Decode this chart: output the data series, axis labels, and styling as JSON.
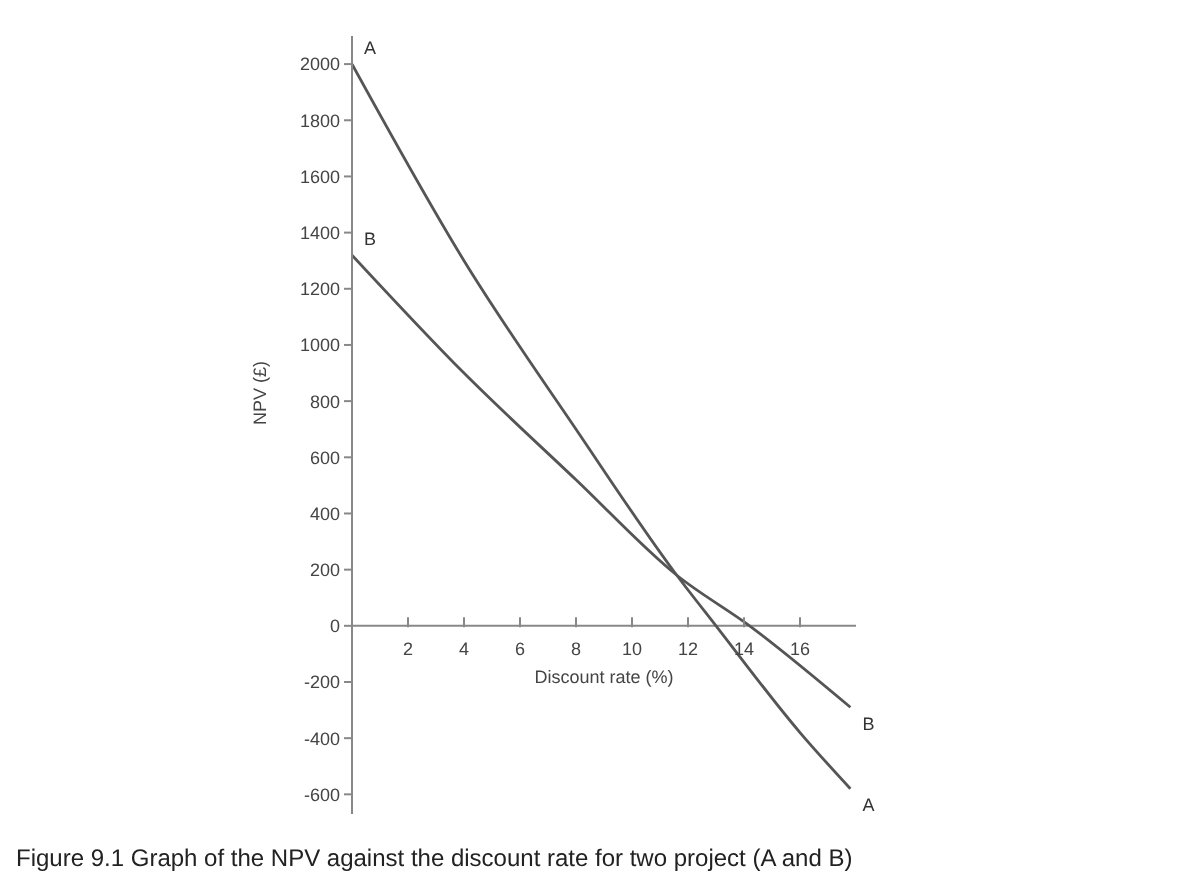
{
  "chart_data": {
    "type": "line",
    "xlabel": "Discount rate (%)",
    "ylabel": "NPV (£)",
    "xlim": [
      0,
      18
    ],
    "xticks": [
      2,
      4,
      6,
      8,
      10,
      12,
      14,
      16
    ],
    "ylim": [
      -670,
      2100
    ],
    "yticks": [
      -600,
      -400,
      -200,
      0,
      200,
      400,
      600,
      800,
      1000,
      1200,
      1400,
      1600,
      1800,
      2000
    ],
    "series": [
      {
        "name": "A",
        "color": "#555555",
        "x": [
          0,
          4,
          8,
          11.6,
          13,
          16,
          17.8
        ],
        "values": [
          2000,
          1300,
          700,
          180,
          0,
          -380,
          -580
        ]
      },
      {
        "name": "B",
        "color": "#555555",
        "x": [
          0,
          4,
          8,
          11.6,
          14.2,
          17.8
        ],
        "values": [
          1320,
          900,
          520,
          180,
          0,
          -290
        ]
      }
    ],
    "annotations": [
      "Figure 9.1  Graph of the NPV against the discount rate for two project (A and B)"
    ],
    "marker": "none",
    "line_style": "solid"
  }
}
